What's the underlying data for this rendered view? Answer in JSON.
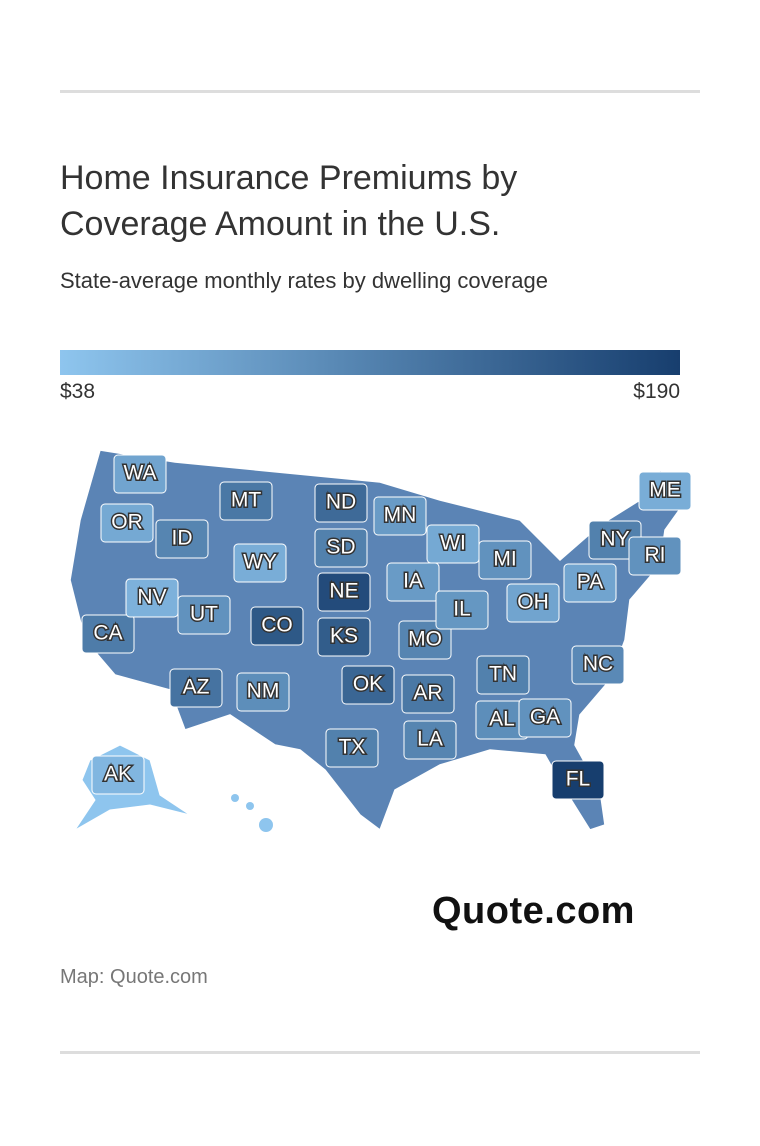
{
  "header": {
    "title": "Home Insurance Premiums by Coverage Amount in the U.S.",
    "subtitle": "State-average monthly rates by dwelling coverage"
  },
  "map_data": {
    "type": "choropleth",
    "legend": {
      "min": {
        "value": 38,
        "label": "$38"
      },
      "max": {
        "value": 190,
        "label": "$190"
      }
    },
    "color_scale": [
      "#8ec5ee",
      "#173e6e"
    ],
    "regions": [
      {
        "label": "WA",
        "value": 75
      },
      {
        "label": "OR",
        "value": 70
      },
      {
        "label": "CA",
        "value": 120
      },
      {
        "label": "ID",
        "value": 110
      },
      {
        "label": "NV",
        "value": 60
      },
      {
        "label": "MT",
        "value": 125
      },
      {
        "label": "WY",
        "value": 65
      },
      {
        "label": "UT",
        "value": 95
      },
      {
        "label": "AZ",
        "value": 130
      },
      {
        "label": "CO",
        "value": 160
      },
      {
        "label": "NM",
        "value": 100
      },
      {
        "label": "ND",
        "value": 140
      },
      {
        "label": "SD",
        "value": 115
      },
      {
        "label": "NE",
        "value": 175
      },
      {
        "label": "KS",
        "value": 155
      },
      {
        "label": "OK",
        "value": 145
      },
      {
        "label": "TX",
        "value": 115
      },
      {
        "label": "MN",
        "value": 85
      },
      {
        "label": "IA",
        "value": 85
      },
      {
        "label": "MO",
        "value": 110
      },
      {
        "label": "AR",
        "value": 125
      },
      {
        "label": "LA",
        "value": 110
      },
      {
        "label": "WI",
        "value": 70
      },
      {
        "label": "IL",
        "value": 90
      },
      {
        "label": "MI",
        "value": 95
      },
      {
        "label": "TN",
        "value": 115
      },
      {
        "label": "AL",
        "value": 100
      },
      {
        "label": "GA",
        "value": 95
      },
      {
        "label": "FL",
        "value": 190
      },
      {
        "label": "OH",
        "value": 75
      },
      {
        "label": "PA",
        "value": 75
      },
      {
        "label": "NY",
        "value": 115
      },
      {
        "label": "NC",
        "value": 105
      },
      {
        "label": "ME",
        "value": 65
      },
      {
        "label": "RI",
        "value": 95
      },
      {
        "label": "AK",
        "value": 55
      }
    ]
  },
  "logo": "Quote.com",
  "source": "Map: Quote.com"
}
